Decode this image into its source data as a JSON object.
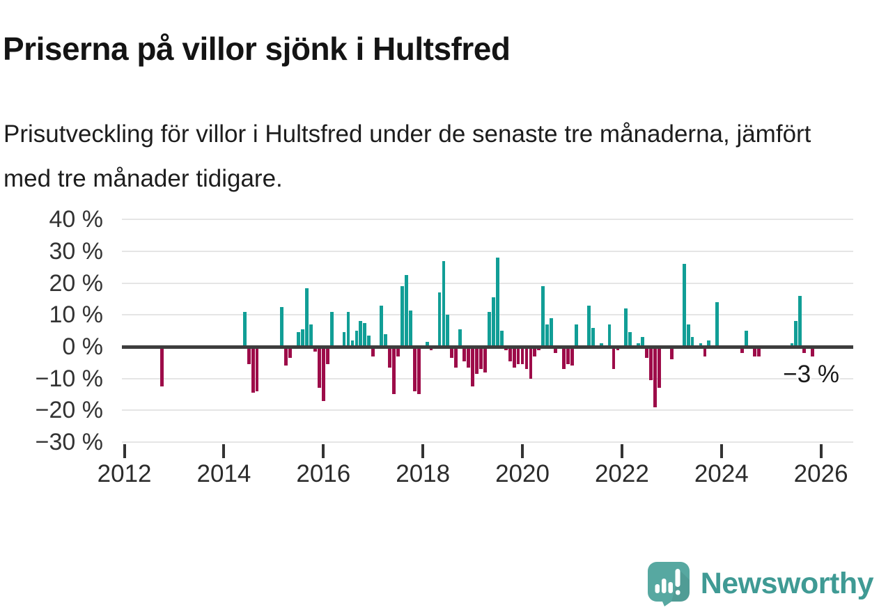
{
  "header": {
    "title": "Priserna på villor sjönk i Hultsfred",
    "subtitle": "Prisutveckling för villor i Hultsfred under de senaste tre månaderna, jämfört med tre månader tidigare."
  },
  "chart": {
    "y_axis_labels": [
      "40 %",
      "30 %",
      "20 %",
      "10 %",
      "0 %",
      "−10 %",
      "−20 %",
      "−30 %"
    ],
    "x_axis_labels": [
      "2012",
      "2014",
      "2016",
      "2018",
      "2020",
      "2022",
      "2024",
      "2026"
    ],
    "annotation_label": "−3 %"
  },
  "footer": {
    "brand": "Newsworthy"
  },
  "colors": {
    "positive": "#119e96",
    "negative": "#9d0c49",
    "gridline": "#e5e5e5",
    "zero_line": "#3d3d3d",
    "axis_text": "#333333",
    "logo_teal": "#57a8a1",
    "brand_text": "#3f9a94"
  },
  "chart_data": {
    "type": "bar",
    "title": "Priserna på villor sjönk i Hultsfred",
    "unit": "%",
    "ylim": [
      -30,
      40
    ],
    "y_ticks": [
      40,
      30,
      20,
      10,
      0,
      -10,
      -20,
      -30
    ],
    "x_ticks_years": [
      2012,
      2014,
      2016,
      2018,
      2020,
      2022,
      2024,
      2026
    ],
    "grid": true,
    "legend": "none",
    "last_value_label": "−3 %",
    "series": [
      {
        "date": "2012-10",
        "value": -12.5
      },
      {
        "date": "2014-06",
        "value": 11
      },
      {
        "date": "2014-07",
        "value": -5.5
      },
      {
        "date": "2014-08",
        "value": -14.5
      },
      {
        "date": "2014-09",
        "value": -14
      },
      {
        "date": "2015-03",
        "value": 12.5
      },
      {
        "date": "2015-04",
        "value": -6
      },
      {
        "date": "2015-05",
        "value": -3.5
      },
      {
        "date": "2015-07",
        "value": 4.5
      },
      {
        "date": "2015-08",
        "value": 5.5
      },
      {
        "date": "2015-09",
        "value": 18.5
      },
      {
        "date": "2015-10",
        "value": 7
      },
      {
        "date": "2015-11",
        "value": -1.5
      },
      {
        "date": "2015-12",
        "value": -13
      },
      {
        "date": "2016-01",
        "value": -17
      },
      {
        "date": "2016-02",
        "value": -5.5
      },
      {
        "date": "2016-03",
        "value": 11
      },
      {
        "date": "2016-06",
        "value": 4.5
      },
      {
        "date": "2016-07",
        "value": 11
      },
      {
        "date": "2016-08",
        "value": 2
      },
      {
        "date": "2016-09",
        "value": 5
      },
      {
        "date": "2016-10",
        "value": 8
      },
      {
        "date": "2016-11",
        "value": 7.5
      },
      {
        "date": "2016-12",
        "value": 3.5
      },
      {
        "date": "2017-01",
        "value": -3
      },
      {
        "date": "2017-03",
        "value": 13
      },
      {
        "date": "2017-04",
        "value": 4
      },
      {
        "date": "2017-05",
        "value": -6.5
      },
      {
        "date": "2017-06",
        "value": -15
      },
      {
        "date": "2017-07",
        "value": -3
      },
      {
        "date": "2017-08",
        "value": 19
      },
      {
        "date": "2017-09",
        "value": 22.5
      },
      {
        "date": "2017-10",
        "value": 11.5
      },
      {
        "date": "2017-11",
        "value": -14
      },
      {
        "date": "2017-12",
        "value": -15
      },
      {
        "date": "2018-02",
        "value": 1.5
      },
      {
        "date": "2018-03",
        "value": -1
      },
      {
        "date": "2018-05",
        "value": 17
      },
      {
        "date": "2018-06",
        "value": 27
      },
      {
        "date": "2018-07",
        "value": 10
      },
      {
        "date": "2018-08",
        "value": -3.5
      },
      {
        "date": "2018-09",
        "value": -6.5
      },
      {
        "date": "2018-10",
        "value": 5.5
      },
      {
        "date": "2018-11",
        "value": -4.5
      },
      {
        "date": "2018-12",
        "value": -6.5
      },
      {
        "date": "2019-01",
        "value": -12.5
      },
      {
        "date": "2019-02",
        "value": -8.5
      },
      {
        "date": "2019-03",
        "value": -7
      },
      {
        "date": "2019-04",
        "value": -8
      },
      {
        "date": "2019-05",
        "value": 11
      },
      {
        "date": "2019-06",
        "value": 15.5
      },
      {
        "date": "2019-07",
        "value": 28
      },
      {
        "date": "2019-08",
        "value": 5
      },
      {
        "date": "2019-09",
        "value": -1
      },
      {
        "date": "2019-10",
        "value": -4.5
      },
      {
        "date": "2019-11",
        "value": -6.5
      },
      {
        "date": "2019-12",
        "value": -5.5
      },
      {
        "date": "2020-01",
        "value": -5.5
      },
      {
        "date": "2020-02",
        "value": -7
      },
      {
        "date": "2020-03",
        "value": -10
      },
      {
        "date": "2020-04",
        "value": -3
      },
      {
        "date": "2020-05",
        "value": -1
      },
      {
        "date": "2020-06",
        "value": 19
      },
      {
        "date": "2020-07",
        "value": 7
      },
      {
        "date": "2020-08",
        "value": 9
      },
      {
        "date": "2020-09",
        "value": -2
      },
      {
        "date": "2020-11",
        "value": -7
      },
      {
        "date": "2020-12",
        "value": -5.5
      },
      {
        "date": "2021-01",
        "value": -6
      },
      {
        "date": "2021-02",
        "value": 7
      },
      {
        "date": "2021-05",
        "value": 13
      },
      {
        "date": "2021-06",
        "value": 6
      },
      {
        "date": "2021-08",
        "value": 1
      },
      {
        "date": "2021-10",
        "value": 7
      },
      {
        "date": "2021-11",
        "value": -7
      },
      {
        "date": "2021-12",
        "value": -1
      },
      {
        "date": "2022-02",
        "value": 12
      },
      {
        "date": "2022-03",
        "value": 4.5
      },
      {
        "date": "2022-05",
        "value": 1
      },
      {
        "date": "2022-06",
        "value": 3
      },
      {
        "date": "2022-07",
        "value": -3.5
      },
      {
        "date": "2022-08",
        "value": -10.5
      },
      {
        "date": "2022-09",
        "value": -19
      },
      {
        "date": "2022-10",
        "value": -13
      },
      {
        "date": "2023-01",
        "value": -4
      },
      {
        "date": "2023-04",
        "value": 26
      },
      {
        "date": "2023-05",
        "value": 7
      },
      {
        "date": "2023-06",
        "value": 3
      },
      {
        "date": "2023-08",
        "value": 1
      },
      {
        "date": "2023-09",
        "value": -3
      },
      {
        "date": "2023-10",
        "value": 2
      },
      {
        "date": "2023-12",
        "value": 14
      },
      {
        "date": "2024-06",
        "value": -2
      },
      {
        "date": "2024-07",
        "value": 5
      },
      {
        "date": "2024-09",
        "value": -3
      },
      {
        "date": "2024-10",
        "value": -3
      },
      {
        "date": "2025-06",
        "value": 1
      },
      {
        "date": "2025-07",
        "value": 8
      },
      {
        "date": "2025-08",
        "value": 16
      },
      {
        "date": "2025-09",
        "value": -2
      },
      {
        "date": "2025-11",
        "value": -3
      }
    ]
  }
}
